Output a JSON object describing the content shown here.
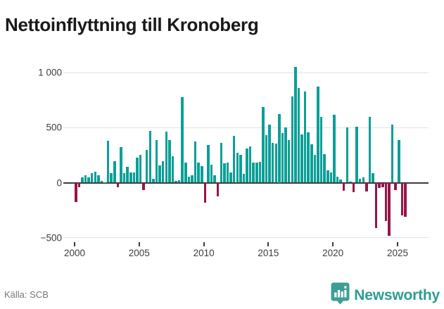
{
  "header": {
    "title": "Nettoinflyttning till Kronoberg"
  },
  "footer": {
    "source_label": "Källa: SCB",
    "brand": {
      "name": "Newsworthy",
      "icon": "newsworthy-badge-chart-icon"
    }
  },
  "colors": {
    "positive_bar": "#0b9f97",
    "negative_bar": "#96154a",
    "brand_teal": "#2d9c95",
    "logo_badge_teal": "#3d9e96",
    "title_text": "#1a1a1a",
    "axis_text": "#3c3c3c",
    "source_text": "#76767e",
    "gridline": "#e3e3e3",
    "zero_line": "#3d3d3d"
  },
  "chart_data": {
    "type": "bar",
    "title": "Nettoinflyttning till Kronoberg",
    "ylabel": "",
    "xlabel": "",
    "unit": "personer, nettoinflyttning per kvartal",
    "frequency": "quarterly",
    "grid": "horizontal",
    "legend": "none",
    "ylim": [
      -560,
      1120
    ],
    "y_ticks": [
      1000,
      500,
      0,
      -500
    ],
    "y_tick_labels": [
      "1 000",
      "500",
      "0",
      "−500"
    ],
    "x_ticks": [
      2000,
      2005,
      2010,
      2015,
      2020,
      2025
    ],
    "x_tick_labels": [
      "2000",
      "2005",
      "2010",
      "2015",
      "2020",
      "2025"
    ],
    "series_by_year": [
      {
        "year": 2000,
        "q": [
          -175,
          -40,
          45,
          70
        ]
      },
      {
        "year": 2001,
        "q": [
          45,
          85,
          100,
          65
        ]
      },
      {
        "year": 2002,
        "q": [
          15,
          5,
          380,
          85
        ]
      },
      {
        "year": 2003,
        "q": [
          195,
          -40,
          320,
          85
        ]
      },
      {
        "year": 2004,
        "q": [
          145,
          90,
          95,
          230
        ]
      },
      {
        "year": 2005,
        "q": [
          250,
          -70,
          300,
          470
        ]
      },
      {
        "year": 2006,
        "q": [
          35,
          385,
          155,
          195
        ]
      },
      {
        "year": 2007,
        "q": [
          465,
          390,
          240,
          15
        ]
      },
      {
        "year": 2008,
        "q": [
          20,
          780,
          185,
          55
        ]
      },
      {
        "year": 2009,
        "q": [
          70,
          375,
          180,
          150
        ]
      },
      {
        "year": 2010,
        "q": [
          -185,
          345,
          160,
          70
        ]
      },
      {
        "year": 2011,
        "q": [
          -125,
          360,
          175,
          185
        ]
      },
      {
        "year": 2012,
        "q": [
          95,
          425,
          270,
          255
        ]
      },
      {
        "year": 2013,
        "q": [
          80,
          310,
          330,
          180
        ]
      },
      {
        "year": 2014,
        "q": [
          180,
          190,
          690,
          430
        ]
      },
      {
        "year": 2015,
        "q": [
          530,
          360,
          355,
          625
        ]
      },
      {
        "year": 2016,
        "q": [
          450,
          500,
          390,
          785
        ]
      },
      {
        "year": 2017,
        "q": [
          1050,
          860,
          435,
          830
        ]
      },
      {
        "year": 2018,
        "q": [
          460,
          350,
          250,
          870
        ]
      },
      {
        "year": 2019,
        "q": [
          600,
          260,
          115,
          90
        ]
      },
      {
        "year": 2020,
        "q": [
          615,
          55,
          30,
          -75
        ]
      },
      {
        "year": 2021,
        "q": [
          500,
          10,
          -85,
          510
        ]
      },
      {
        "year": 2022,
        "q": [
          35,
          50,
          -80,
          595
        ]
      },
      {
        "year": 2023,
        "q": [
          85,
          -415,
          -50,
          -40
        ]
      },
      {
        "year": 2024,
        "q": [
          -350,
          -485,
          530,
          -70
        ]
      },
      {
        "year": 2025,
        "q": [
          385,
          -300,
          -310
        ]
      }
    ]
  }
}
